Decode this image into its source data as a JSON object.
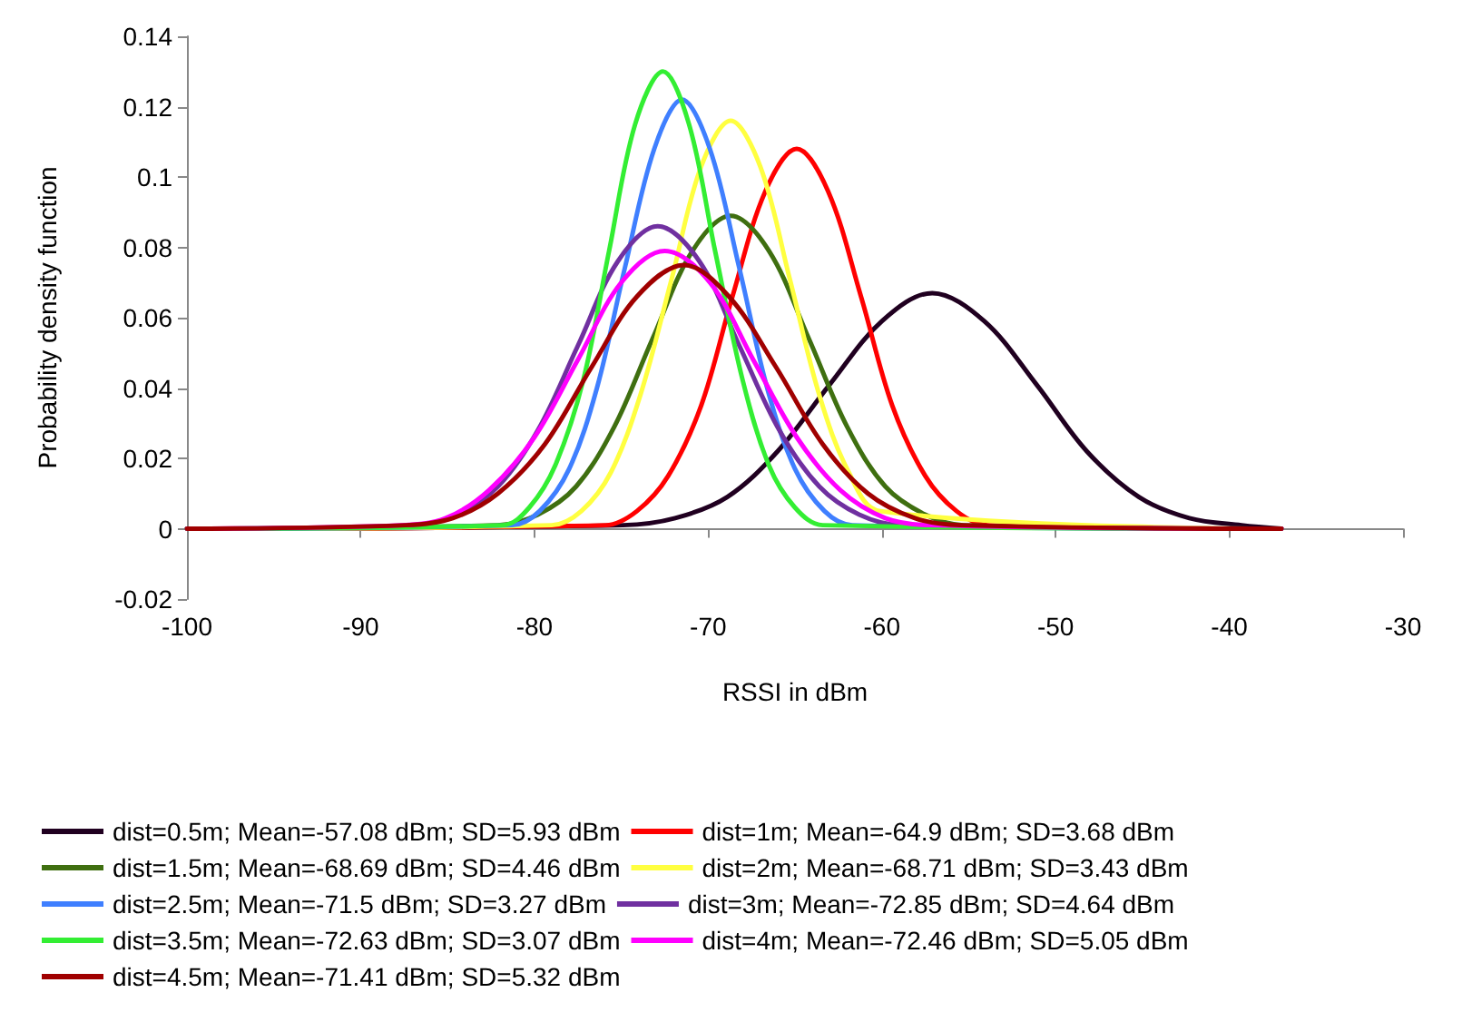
{
  "chart_data": {
    "type": "line",
    "xlabel": "RSSI in dBm",
    "ylabel": "Probability density function",
    "xlim": [
      -100,
      -30
    ],
    "xticks": [
      -100,
      -90,
      -80,
      -70,
      -60,
      -50,
      -40,
      -30
    ],
    "ylim": [
      -0.02,
      0.14
    ],
    "yticks": [
      -0.02,
      0,
      0.02,
      0.04,
      0.06,
      0.08,
      0.1,
      0.12,
      0.14
    ],
    "legend": "bottom",
    "marker": "none",
    "line_style": "solid",
    "series": [
      {
        "name": "dist=0.5m; Mean=-57.08 dBm; SD=5.93 dBm",
        "color": "#200020",
        "x": [
          -100,
          -74.9,
          -71.9,
          -68.9,
          -66.0,
          -63.0,
          -60.0,
          -57.1,
          -54.1,
          -51.1,
          -48.2,
          -45.2,
          -42.3,
          -39.3,
          -37
        ],
        "values": [
          0,
          0.001,
          0.003,
          0.009,
          0.022,
          0.041,
          0.059,
          0.067,
          0.059,
          0.041,
          0.022,
          0.009,
          0.003,
          0.001,
          0
        ]
      },
      {
        "name": "dist=1m; Mean=-64.9 dBm; SD=3.68 dBm",
        "color": "#ff0000",
        "x": [
          -100,
          -75.9,
          -74.1,
          -72.3,
          -70.4,
          -68.6,
          -66.7,
          -64.9,
          -63.1,
          -61.2,
          -59.4,
          -57.5,
          -55.7,
          -53.9,
          -37
        ],
        "values": [
          0,
          0.001,
          0.005,
          0.015,
          0.035,
          0.066,
          0.096,
          0.108,
          0.096,
          0.066,
          0.035,
          0.015,
          0.005,
          0.001,
          0
        ]
      },
      {
        "name": "dist=1.5m; Mean=-68.69 dBm; SD=4.46 dBm",
        "color": "#3f6f10",
        "x": [
          -100,
          -82.1,
          -79.8,
          -77.6,
          -75.4,
          -73.2,
          -70.9,
          -68.7,
          -66.5,
          -64.2,
          -62.0,
          -59.8,
          -57.5,
          -55.3,
          -37
        ],
        "values": [
          0,
          0.001,
          0.004,
          0.012,
          0.029,
          0.054,
          0.079,
          0.089,
          0.079,
          0.054,
          0.029,
          0.012,
          0.004,
          0.001,
          0
        ]
      },
      {
        "name": "dist=2m; Mean=-68.71 dBm; SD=3.43 dBm",
        "color": "#ffff40",
        "x": [
          -100,
          -79.0,
          -77.3,
          -75.6,
          -73.9,
          -72.1,
          -70.4,
          -68.7,
          -67.0,
          -65.3,
          -63.6,
          -61.9,
          -60.1,
          -37
        ],
        "values": [
          0,
          0.001,
          0.005,
          0.016,
          0.038,
          0.071,
          0.103,
          0.116,
          0.103,
          0.071,
          0.038,
          0.016,
          0.005,
          0
        ]
      },
      {
        "name": "dist=2.5m; Mean=-71.5 dBm; SD=3.27 dBm",
        "color": "#3f7fff",
        "x": [
          -100,
          -81.3,
          -79.7,
          -78.0,
          -76.4,
          -74.8,
          -73.1,
          -71.5,
          -69.9,
          -68.2,
          -66.6,
          -65.0,
          -63.3,
          -61.7,
          -37
        ],
        "values": [
          0,
          0.001,
          0.005,
          0.017,
          0.04,
          0.074,
          0.108,
          0.122,
          0.108,
          0.074,
          0.04,
          0.017,
          0.005,
          0.001,
          0
        ]
      },
      {
        "name": "dist=3m; Mean=-72.85 dBm; SD=4.64 dBm",
        "color": "#7030a0",
        "x": [
          -100,
          -86.8,
          -84.5,
          -82.1,
          -79.8,
          -77.5,
          -75.2,
          -72.9,
          -70.5,
          -68.2,
          -65.9,
          -63.6,
          -61.3,
          -58.9,
          -37
        ],
        "values": [
          0,
          0.001,
          0.004,
          0.012,
          0.028,
          0.052,
          0.076,
          0.086,
          0.076,
          0.052,
          0.028,
          0.012,
          0.004,
          0.001,
          0
        ]
      },
      {
        "name": "dist=3.5m; Mean=-72.63 dBm; SD=3.07 dBm",
        "color": "#33ee33",
        "x": [
          -100,
          -81.8,
          -80.3,
          -78.8,
          -77.2,
          -75.7,
          -74.2,
          -72.6,
          -71.1,
          -69.6,
          -68.0,
          -66.5,
          -65.0,
          -63.4,
          -37
        ],
        "values": [
          0,
          0.001,
          0.006,
          0.018,
          0.042,
          0.079,
          0.115,
          0.13,
          0.115,
          0.079,
          0.042,
          0.018,
          0.006,
          0.001,
          0
        ]
      },
      {
        "name": "dist=4m; Mean=-72.46 dBm; SD=5.05 dBm",
        "color": "#ff00ff",
        "x": [
          -100,
          -87.6,
          -85.1,
          -82.6,
          -80.0,
          -77.5,
          -75.0,
          -72.5,
          -69.9,
          -67.4,
          -64.9,
          -62.4,
          -59.8,
          -57.3,
          -37
        ],
        "values": [
          0,
          0.001,
          0.003,
          0.011,
          0.026,
          0.048,
          0.07,
          0.079,
          0.07,
          0.048,
          0.026,
          0.011,
          0.003,
          0.001,
          0
        ]
      },
      {
        "name": "dist=4.5m; Mean=-71.41 dBm; SD=5.32 dBm",
        "color": "#a00000",
        "x": [
          -100,
          -87.4,
          -84.7,
          -82.1,
          -79.4,
          -76.7,
          -74.1,
          -71.4,
          -68.8,
          -66.1,
          -63.4,
          -60.8,
          -58.1,
          -55.5,
          -37
        ],
        "values": [
          0,
          0.001,
          0.003,
          0.01,
          0.024,
          0.046,
          0.066,
          0.075,
          0.066,
          0.046,
          0.024,
          0.01,
          0.003,
          0.001,
          0
        ]
      }
    ]
  }
}
